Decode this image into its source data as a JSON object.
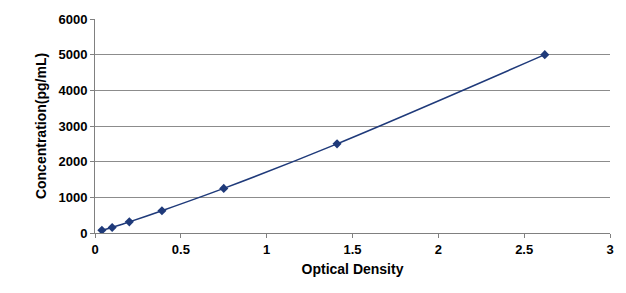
{
  "chart_data": {
    "type": "scatter",
    "x_label": "Optical Density",
    "y_label": "Concentration(pg/mL)",
    "x": [
      0.04,
      0.1,
      0.2,
      0.39,
      0.75,
      1.41,
      2.62
    ],
    "values": [
      78,
      156,
      312,
      625,
      1250,
      2500,
      5000
    ],
    "color": "#1f3a7a",
    "marker": "diamond",
    "line_style": "spline",
    "xlim": [
      0,
      3
    ],
    "xticks": [
      0,
      0.5,
      1,
      1.5,
      2,
      2.5,
      3
    ],
    "ylim": [
      0,
      6000
    ],
    "yticks": [
      0,
      1000,
      2000,
      3000,
      4000,
      5000,
      6000
    ],
    "grid": true
  }
}
